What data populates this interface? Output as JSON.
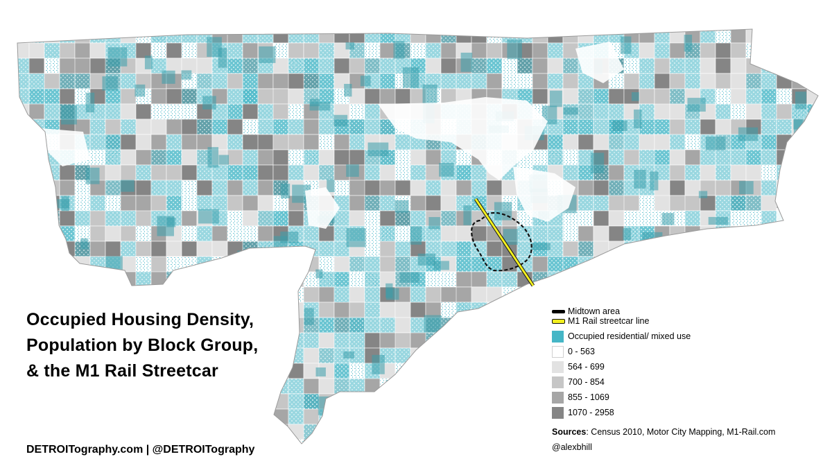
{
  "title": {
    "line1": "Occupied Housing Density,",
    "line2": "Population by Block Group,",
    "line3": "& the M1 Rail Streetcar"
  },
  "credit": "DETROITography.com | @DETROITography",
  "legend": {
    "lines": [
      {
        "label": "Midtown area",
        "icon": "dashed-boundary-line"
      },
      {
        "label": "M1 Rail streetcar line",
        "icon": "yellow-rail-line"
      }
    ],
    "residential": {
      "label": "Occupied residential/ mixed use",
      "color": "#45b6c6"
    },
    "classes": [
      {
        "label": "0 - 563",
        "color": "#ffffff"
      },
      {
        "label": "564 - 699",
        "color": "#e2e2e2"
      },
      {
        "label": "700 - 854",
        "color": "#c6c6c6"
      },
      {
        "label": "855 - 1069",
        "color": "#a6a6a6"
      },
      {
        "label": "1070 - 2958",
        "color": "#858585"
      }
    ],
    "sources_label": "Sources",
    "sources_text": ": Census 2010, Motor City Mapping, M1-Rail.com",
    "author": "@alexbhill"
  },
  "map_colors": {
    "residential": "#45b6c6",
    "rail": "#f2ef1f",
    "midtown": "#000000"
  }
}
